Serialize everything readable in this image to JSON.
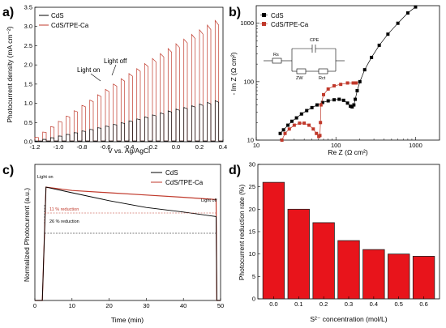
{
  "chart_data": [
    {
      "panel": "a)",
      "type": "line",
      "xlabel": "V vs. Ag/AgCl",
      "ylabel": "Photocurrent density (mA cm⁻²)",
      "xlim": [
        -1.2,
        0.4
      ],
      "ylim": [
        0,
        3.5
      ],
      "x_ticks": [
        "-1.2",
        "-1.0",
        "-0.8",
        "-0.6",
        "-0.4",
        "-0.2",
        "0.0",
        "0.2",
        "0.4"
      ],
      "y_ticks": [
        "0.0",
        "0.5",
        "1.0",
        "1.5",
        "2.0",
        "2.5",
        "3.0",
        "3.5"
      ],
      "annotations": [
        "Light on",
        "Light off"
      ],
      "grid": false,
      "legend_position": "top-left",
      "series": [
        {
          "name": "CdS",
          "color": "#000000",
          "x": [
            -1.2,
            -0.8,
            -0.4,
            0.0,
            0.4
          ],
          "values": [
            0.0,
            0.25,
            0.5,
            0.8,
            1.05
          ]
        },
        {
          "name": "CdS/TPE-Ca",
          "color": "#c0392b",
          "x": [
            -1.2,
            -0.8,
            -0.4,
            0.0,
            0.4
          ],
          "values": [
            0.05,
            0.85,
            1.65,
            2.4,
            3.1
          ]
        }
      ]
    },
    {
      "panel": "b)",
      "type": "scatter",
      "xlabel": "Re Z (Ω cm²)",
      "ylabel": "- Im Z (Ω cm²)",
      "xscale": "log",
      "yscale": "log",
      "xlim": [
        10,
        2000
      ],
      "ylim": [
        10,
        2000
      ],
      "x_ticks": [
        "10",
        "100",
        "1000"
      ],
      "y_ticks": [
        "10",
        "100",
        "1000"
      ],
      "circuit": {
        "title": "CPE",
        "elements": [
          "Rs",
          "ZW",
          "Rct"
        ]
      },
      "legend_position": "top-left",
      "series": [
        {
          "name": "CdS",
          "color": "#000000",
          "marker": "square",
          "x": [
            20,
            22,
            25,
            28,
            32,
            37,
            43,
            50,
            58,
            68,
            80,
            95,
            110,
            125,
            140,
            152,
            160,
            168,
            175,
            185,
            200,
            230,
            280,
            350,
            450,
            600,
            800,
            1000
          ],
          "values": [
            13,
            15,
            18,
            21,
            24,
            28,
            32,
            36,
            40,
            44,
            47,
            49,
            50,
            48,
            43,
            38,
            37,
            40,
            50,
            70,
            100,
            160,
            260,
            420,
            650,
            1000,
            1500,
            1900
          ]
        },
        {
          "name": "CdS/TPE-Ca",
          "color": "#c0392b",
          "marker": "square",
          "x": [
            21,
            23,
            26,
            30,
            35,
            40,
            46,
            52,
            57,
            61,
            63,
            64,
            65,
            70,
            80,
            95,
            115,
            140,
            165,
            180
          ],
          "values": [
            10,
            13,
            15.5,
            18,
            19.5,
            19.5,
            18,
            15.5,
            13,
            11.5,
            12,
            20,
            40,
            60,
            75,
            85,
            90,
            95,
            95,
            95
          ]
        }
      ]
    },
    {
      "panel": "c)",
      "type": "line",
      "xlabel": "Time (min)",
      "ylabel": "Normalized Photocurrent (a.u.)",
      "xlim": [
        0,
        50
      ],
      "ylim": [
        0,
        1.2
      ],
      "x_ticks": [
        "0",
        "10",
        "20",
        "30",
        "40",
        "50"
      ],
      "annotations": [
        "Light on",
        "Light off",
        "11 % reduction",
        "26 % reduction"
      ],
      "legend_position": "top-right",
      "series": [
        {
          "name": "CdS",
          "color": "#000000",
          "x": [
            0,
            2,
            3,
            10,
            20,
            30,
            40,
            48.8,
            49,
            50
          ],
          "values": [
            0.0,
            0.0,
            1.0,
            0.95,
            0.88,
            0.82,
            0.78,
            0.74,
            0.0,
            0.0
          ]
        },
        {
          "name": "CdS/TPE-Ca",
          "color": "#c0392b",
          "x": [
            0,
            2,
            3,
            10,
            20,
            30,
            40,
            48.8,
            49,
            50
          ],
          "values": [
            0.0,
            0.0,
            1.0,
            0.97,
            0.95,
            0.93,
            0.91,
            0.89,
            0.0,
            0.0
          ]
        }
      ]
    },
    {
      "panel": "d)",
      "type": "bar",
      "xlabel": "S²⁻ concentration (mol/L)",
      "ylabel": "Photocurrent reduction rate (%)",
      "ylim": [
        0,
        30
      ],
      "y_ticks": [
        "0",
        "5",
        "10",
        "15",
        "20",
        "25",
        "30"
      ],
      "categories": [
        "0.0",
        "0.1",
        "0.2",
        "0.3",
        "0.4",
        "0.5",
        "0.6"
      ],
      "bar_color": "#e8141b",
      "values": [
        26,
        20,
        17,
        13,
        11,
        10,
        9.5
      ]
    }
  ]
}
